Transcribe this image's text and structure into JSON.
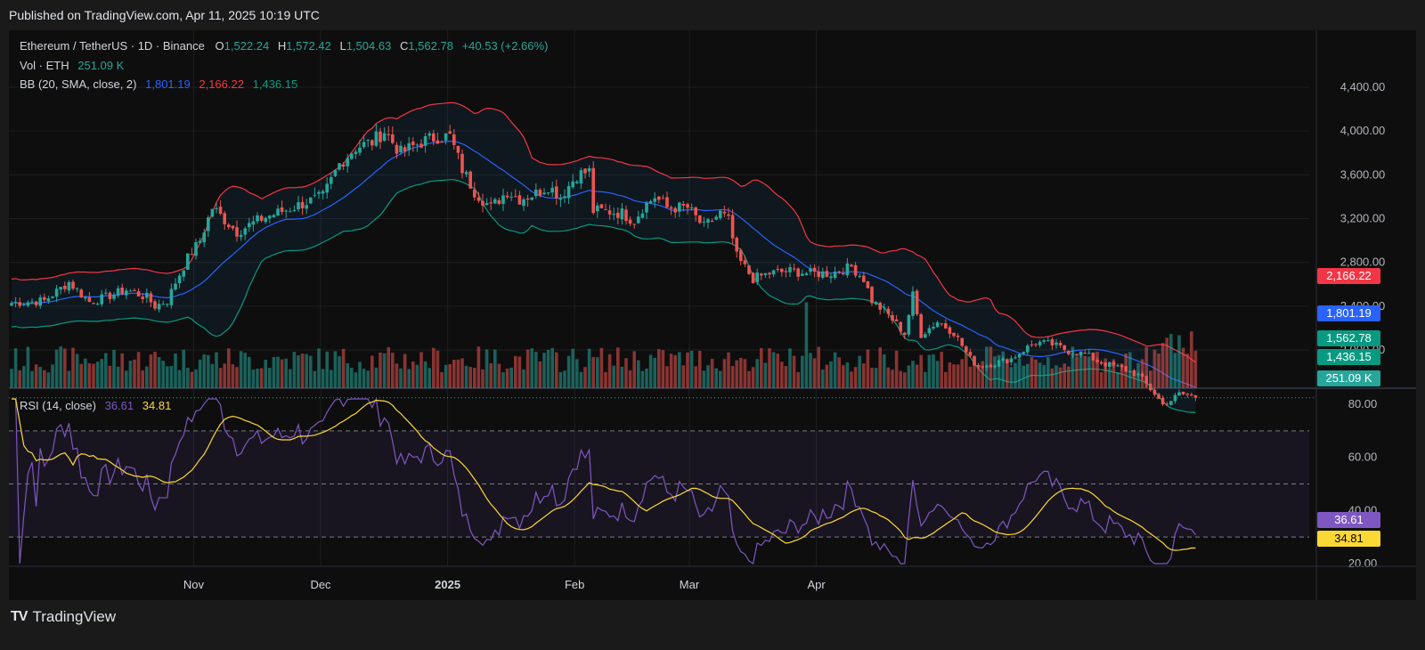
{
  "header": {
    "published": "Published on TradingView.com, Apr 11, 2025 10:19 UTC"
  },
  "legend": {
    "symbol": "Ethereum / TetherUS · 1D · Binance",
    "o_label": "O",
    "o_value": "1,522.24",
    "h_label": "H",
    "h_value": "1,572.42",
    "l_label": "L",
    "l_value": "1,504.63",
    "c_label": "C",
    "c_value": "1,562.78",
    "change": "+40.53 (+2.66%)",
    "vol_label": "Vol · ETH",
    "vol_value": "251.09 K",
    "bb_label": "BB (20, SMA, close, 2)",
    "bb_basis": "1,801.19",
    "bb_upper": "2,166.22",
    "bb_lower": "1,436.15",
    "rsi_label": "RSI (14, close)",
    "rsi_value": "36.61",
    "rsi_ma": "34.81"
  },
  "footer": {
    "brand": "TradingView",
    "logo": "TV"
  },
  "colors": {
    "up": "#26a69a",
    "down": "#ef5350",
    "basis": "#2962ff",
    "upper": "#f23645",
    "lower": "#089981",
    "rsi": "#7e57c2",
    "rsi_ma": "#fdd835"
  },
  "chart_data": {
    "type": "candlestick",
    "symbol": "Ethereum / TetherUS",
    "interval": "1D",
    "exchange": "Binance",
    "price_axis": {
      "ticks": [
        "4,400.00",
        "4,000.00",
        "3,600.00",
        "3,200.00",
        "2,800.00",
        "2,400.00",
        "2,000.00"
      ],
      "range": [
        1400,
        4450
      ]
    },
    "time_axis": {
      "ticks": [
        "Nov",
        "Dec",
        "2025",
        "Feb",
        "Mar",
        "Apr"
      ]
    },
    "price_tags": [
      "2,166.22",
      "1,801.19",
      "1,562.78",
      "1,436.15",
      "251.09 K"
    ],
    "rsi_panel": {
      "ticks": [
        "80.00",
        "60.00",
        "40.00",
        "20.00"
      ],
      "range": [
        20,
        82
      ],
      "overbought": 70,
      "oversold": 30,
      "mid": 50,
      "tags": [
        "36.61",
        "34.81"
      ]
    },
    "close_anchors": [
      [
        0,
        2430
      ],
      [
        8,
        2450
      ],
      [
        14,
        2620
      ],
      [
        19,
        2440
      ],
      [
        22,
        2470
      ],
      [
        28,
        2550
      ],
      [
        33,
        2480
      ],
      [
        35,
        2400
      ],
      [
        38,
        2450
      ],
      [
        40,
        2620
      ],
      [
        43,
        2840
      ],
      [
        46,
        3000
      ],
      [
        49,
        3300
      ],
      [
        55,
        3080
      ],
      [
        61,
        3200
      ],
      [
        67,
        3280
      ],
      [
        72,
        3350
      ],
      [
        76,
        3400
      ],
      [
        80,
        3700
      ],
      [
        84,
        3850
      ],
      [
        88,
        3900
      ],
      [
        91,
        4000
      ],
      [
        95,
        3800
      ],
      [
        100,
        3900
      ],
      [
        104,
        3950
      ],
      [
        107,
        3950
      ],
      [
        110,
        3650
      ],
      [
        113,
        3450
      ],
      [
        117,
        3300
      ],
      [
        121,
        3450
      ],
      [
        124,
        3380
      ],
      [
        128,
        3430
      ],
      [
        131,
        3500
      ],
      [
        134,
        3400
      ],
      [
        138,
        3600
      ],
      [
        141,
        3630
      ],
      [
        142,
        3270
      ],
      [
        145,
        3270
      ],
      [
        149,
        3250
      ],
      [
        152,
        3180
      ],
      [
        154,
        3300
      ],
      [
        157,
        3400
      ],
      [
        160,
        3300
      ],
      [
        165,
        3300
      ],
      [
        169,
        3120
      ],
      [
        173,
        3250
      ],
      [
        175,
        3180
      ],
      [
        177,
        2850
      ],
      [
        181,
        2650
      ],
      [
        185,
        2700
      ],
      [
        190,
        2720
      ],
      [
        195,
        2700
      ],
      [
        200,
        2700
      ],
      [
        205,
        2760
      ],
      [
        208,
        2650
      ],
      [
        210,
        2450
      ],
      [
        214,
        2320
      ],
      [
        218,
        2150
      ],
      [
        220,
        2500
      ],
      [
        222,
        2140
      ],
      [
        226,
        2260
      ],
      [
        230,
        2160
      ],
      [
        234,
        1920
      ],
      [
        236,
        1850
      ],
      [
        240,
        1880
      ],
      [
        244,
        1920
      ],
      [
        247,
        2000
      ],
      [
        250,
        2070
      ],
      [
        254,
        2050
      ],
      [
        258,
        1990
      ],
      [
        262,
        1960
      ],
      [
        265,
        1900
      ],
      [
        268,
        1860
      ],
      [
        271,
        1830
      ],
      [
        275,
        1770
      ],
      [
        279,
        1600
      ],
      [
        281,
        1500
      ],
      [
        283,
        1540
      ],
      [
        285,
        1600
      ],
      [
        288,
        1580
      ],
      [
        289,
        1563
      ]
    ],
    "volume_range": [
      0,
      850000
    ],
    "last_close": 1562.78
  }
}
